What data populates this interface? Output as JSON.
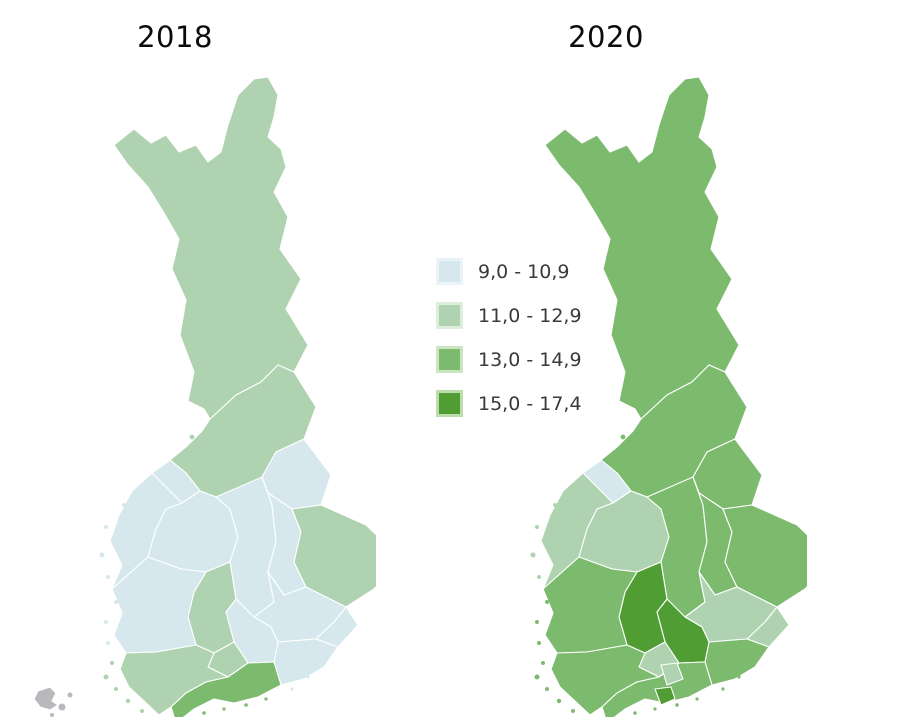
{
  "maps": {
    "left": {
      "title": "2018",
      "regions": {
        "lappi": "b2",
        "pohjois-pohjanmaa": "b2",
        "kainuu": "b1",
        "keski-pohjanmaa": "b1",
        "pohjanmaa": "b1",
        "etela-pohjanmaa": "b1",
        "keski-suomi": "b1",
        "pohjois-savo": "b1",
        "pohjois-karjala": "b2",
        "etela-savo": "b1",
        "etela-karjala": "b1",
        "kymenlaakso": "b1",
        "paijat-hame": "b1",
        "pirkanmaa": "b2",
        "satakunta": "b1",
        "kanta-hame": "b2",
        "uusimaa": "b3",
        "varsinais-suomi": "b2",
        "ahvenanmaa": "nodata"
      }
    },
    "right": {
      "title": "2020",
      "regions": {
        "lappi": "b3",
        "pohjois-pohjanmaa": "b3",
        "kainuu": "b3",
        "keski-pohjanmaa": "b1",
        "pohjanmaa": "b2",
        "etela-pohjanmaa": "b2",
        "keski-suomi": "b3",
        "pohjois-savo": "b3",
        "pohjois-karjala": "b3",
        "etela-savo": "b2",
        "etela-karjala": "b2",
        "kymenlaakso": "b3",
        "paijat-hame": "b4",
        "pirkanmaa": "b4",
        "satakunta": "b3",
        "kanta-hame": "b2",
        "uusimaa": "b3",
        "varsinais-suomi": "b3",
        "keski-uusimaa": "b2",
        "helsinki": "b4"
      }
    }
  },
  "legend": {
    "items": [
      {
        "id": "b1",
        "label": "9,0 - 10,9",
        "color": "#d6e8ee",
        "halo": "#eaf4f8"
      },
      {
        "id": "b2",
        "label": "11,0 - 12,9",
        "color": "#afd3b0",
        "halo": "#ddeedd"
      },
      {
        "id": "b3",
        "label": "13,0 - 14,9",
        "color": "#7cbb6e",
        "halo": "#cbe5c2"
      },
      {
        "id": "b4",
        "label": "15,0 - 17,4",
        "color": "#509e33",
        "halo": "#bcdcab"
      }
    ],
    "no_data": {
      "id": "nodata",
      "color": "#b9b9bd"
    }
  }
}
